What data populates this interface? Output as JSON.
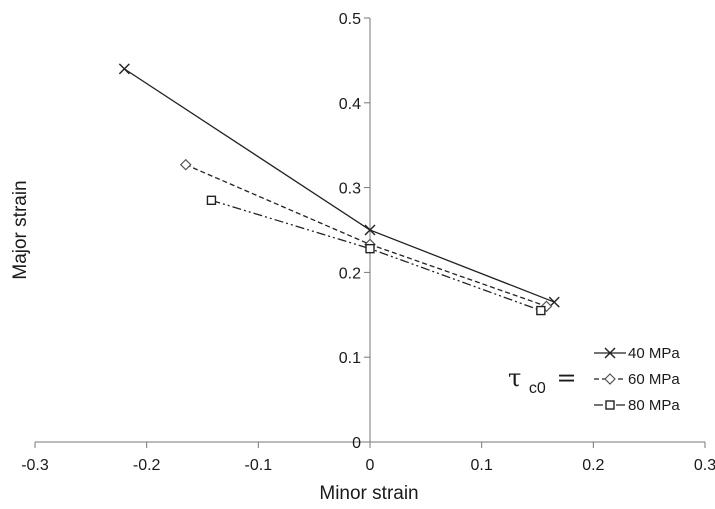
{
  "chart_data": {
    "type": "line",
    "xlabel": "Minor strain",
    "ylabel": "Major strain",
    "xlim": [
      -0.3,
      0.3
    ],
    "ylim": [
      0,
      0.5
    ],
    "x_ticks": [
      "-0.3",
      "-0.2",
      "-0.1",
      "0",
      "0.1",
      "0.2",
      "0.3"
    ],
    "y_ticks": [
      "0",
      "0.1",
      "0.2",
      "0.3",
      "0.4",
      "0.5"
    ],
    "legend_title": "τ",
    "legend_title_subscript": "c0",
    "legend_title_suffix": "=",
    "legend_position": "bottom-right",
    "grid": false,
    "series": [
      {
        "name": "40 MPa",
        "marker": "x",
        "line": "solid",
        "x": [
          -0.22,
          0.0,
          0.165
        ],
        "y": [
          0.44,
          0.25,
          0.165
        ]
      },
      {
        "name": "60 MPa",
        "marker": "diamond",
        "line": "dashed",
        "x": [
          -0.165,
          0.0,
          0.158
        ],
        "y": [
          0.327,
          0.233,
          0.16
        ]
      },
      {
        "name": "80 MPa",
        "marker": "square",
        "line": "dash-dot-dot",
        "x": [
          -0.142,
          0.0,
          0.153
        ],
        "y": [
          0.285,
          0.228,
          0.155
        ]
      }
    ]
  }
}
